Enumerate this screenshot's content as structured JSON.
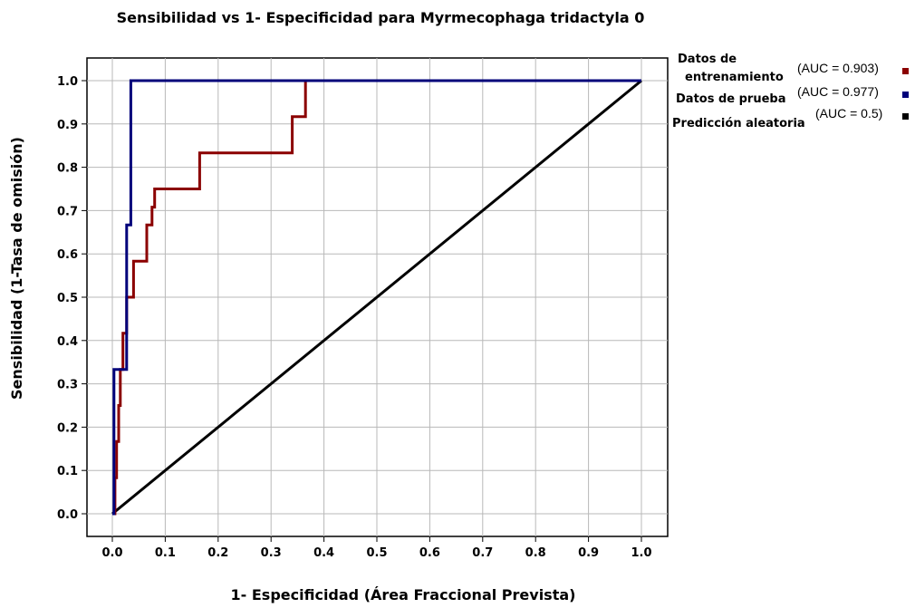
{
  "chart_data": {
    "type": "line",
    "title": "Sensibilidad vs 1- Especificidad para Myrmecophaga  tridactyla 0",
    "xlabel": "1- Especificidad  (Área Fraccional Prevista)",
    "ylabel": "Sensibilidad  (1-Tasa de omisión)",
    "xlim": [
      0,
      1
    ],
    "ylim": [
      0,
      1
    ],
    "x_ticks": [
      "0.0",
      "0.1",
      "0.2",
      "0.3",
      "0.4",
      "0.5",
      "0.6",
      "0.7",
      "0.8",
      "0.9",
      "1.0"
    ],
    "y_ticks": [
      "0.0",
      "0.1",
      "0.2",
      "0.3",
      "0.4",
      "0.5",
      "0.6",
      "0.7",
      "0.8",
      "0.9",
      "1.0"
    ],
    "grid": true,
    "legend_position": "right",
    "series": [
      {
        "legend_lines": [
          "Datos de",
          "entrenamiento"
        ],
        "auc_label": "(AUC = 0.903)",
        "color": "#8b0000",
        "x": [
          0,
          0.005,
          0.005,
          0.008,
          0.008,
          0.012,
          0.012,
          0.015,
          0.015,
          0.02,
          0.02,
          0.027,
          0.027,
          0.03,
          0.03,
          0.04,
          0.04,
          0.05,
          0.05,
          0.065,
          0.065,
          0.075,
          0.075,
          0.08,
          0.08,
          0.165,
          0.165,
          0.34,
          0.34,
          0.355,
          0.355,
          0.365,
          0.365,
          1.0
        ],
        "y": [
          0,
          0,
          0.083,
          0.083,
          0.167,
          0.167,
          0.25,
          0.25,
          0.333,
          0.333,
          0.417,
          0.417,
          0.5,
          0.5,
          0.5,
          0.5,
          0.583,
          0.583,
          0.583,
          0.583,
          0.667,
          0.667,
          0.708,
          0.708,
          0.75,
          0.75,
          0.833,
          0.833,
          0.917,
          0.917,
          0.917,
          0.917,
          1.0,
          1.0
        ]
      },
      {
        "legend_lines": [
          "Datos de prueba"
        ],
        "auc_label": "(AUC = 0.977)",
        "color": "#00007a",
        "x": [
          0,
          0.003,
          0.003,
          0.027,
          0.027,
          0.03,
          0.03,
          0.035,
          0.035,
          1.0
        ],
        "y": [
          0,
          0,
          0.333,
          0.333,
          0.667,
          0.667,
          0.667,
          0.667,
          1.0,
          1.0
        ]
      },
      {
        "legend_lines": [
          "Predicción aleatoria"
        ],
        "auc_label": "(AUC = 0.5)",
        "color": "#000000",
        "x": [
          0,
          1
        ],
        "y": [
          0,
          1
        ]
      }
    ]
  }
}
